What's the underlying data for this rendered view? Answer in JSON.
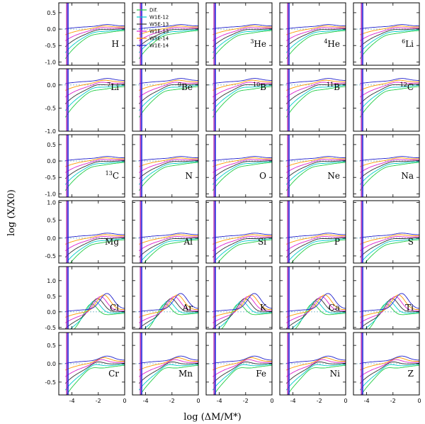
{
  "chart_data": {
    "type": "line",
    "title": "",
    "xlabel": "log (ΔM/M*)",
    "ylabel": "log (X/X0)",
    "xlim": [
      -5,
      0
    ],
    "x_ticks": [
      "-4",
      "-2",
      "0"
    ],
    "legend": {
      "placement": "top-left of second panel",
      "entries": [
        {
          "name": "Dif.",
          "color": "#22cc44"
        },
        {
          "name": "W1E-12",
          "color": "#00cccc"
        },
        {
          "name": "W5E-13",
          "color": "#333333"
        },
        {
          "name": "W1E-13",
          "color": "#dd22cc"
        },
        {
          "name": "W5E-14",
          "color": "#ff9900"
        },
        {
          "name": "W1E-14",
          "color": "#2222cc"
        }
      ]
    },
    "colors": {
      "vline_blue": "#2222dd",
      "vline_purple": "#aa22aa",
      "dotted_ref": "#7fb8c8"
    },
    "rows": [
      {
        "ylim": [
          -1.1,
          0.8
        ],
        "y_ticks": [
          "0.5",
          "0.0",
          "-0.5",
          "-1.0"
        ],
        "panels": [
          {
            "label": "H",
            "sup": ""
          },
          {
            "label": "",
            "sup": ""
          },
          {
            "label": "He",
            "sup": "3"
          },
          {
            "label": "He",
            "sup": "4"
          },
          {
            "label": "Li",
            "sup": "6"
          }
        ]
      },
      {
        "ylim": [
          -1.0,
          0.35
        ],
        "y_ticks": [
          "0.0",
          "-0.5",
          "-1.0"
        ],
        "panels": [
          {
            "label": "Li",
            "sup": "7"
          },
          {
            "label": "Be",
            "sup": "9"
          },
          {
            "label": "B",
            "sup": "10"
          },
          {
            "label": "B",
            "sup": "11"
          },
          {
            "label": "C",
            "sup": "12"
          }
        ]
      },
      {
        "ylim": [
          -1.1,
          0.8
        ],
        "y_ticks": [
          "0.5",
          "0.0",
          "-0.5",
          "-1.0"
        ],
        "panels": [
          {
            "label": "C",
            "sup": "13"
          },
          {
            "label": "N",
            "sup": ""
          },
          {
            "label": "O",
            "sup": ""
          },
          {
            "label": "Ne",
            "sup": ""
          },
          {
            "label": "Na",
            "sup": ""
          }
        ]
      },
      {
        "ylim": [
          -0.7,
          1.05
        ],
        "y_ticks": [
          "1.0",
          "0.5",
          "0.0",
          "-0.5"
        ],
        "panels": [
          {
            "label": "Mg",
            "sup": ""
          },
          {
            "label": "Al",
            "sup": ""
          },
          {
            "label": "Si",
            "sup": ""
          },
          {
            "label": "P",
            "sup": ""
          },
          {
            "label": "S",
            "sup": ""
          }
        ]
      },
      {
        "ylim": [
          -0.55,
          1.45
        ],
        "y_ticks": [
          "1.0",
          "0.5",
          "0.0",
          "-0.5"
        ],
        "panels": [
          {
            "label": "Cl",
            "sup": ""
          },
          {
            "label": "Ar",
            "sup": ""
          },
          {
            "label": "K",
            "sup": ""
          },
          {
            "label": "Ca",
            "sup": ""
          },
          {
            "label": "Ti",
            "sup": ""
          }
        ]
      },
      {
        "ylim": [
          -0.85,
          0.85
        ],
        "y_ticks": [
          "0.5",
          "0.0",
          "-0.5"
        ],
        "panels": [
          {
            "label": "Cr",
            "sup": ""
          },
          {
            "label": "Mn",
            "sup": ""
          },
          {
            "label": "Fe",
            "sup": ""
          },
          {
            "label": "Ni",
            "sup": ""
          },
          {
            "label": "Z",
            "sup": ""
          }
        ]
      }
    ]
  }
}
